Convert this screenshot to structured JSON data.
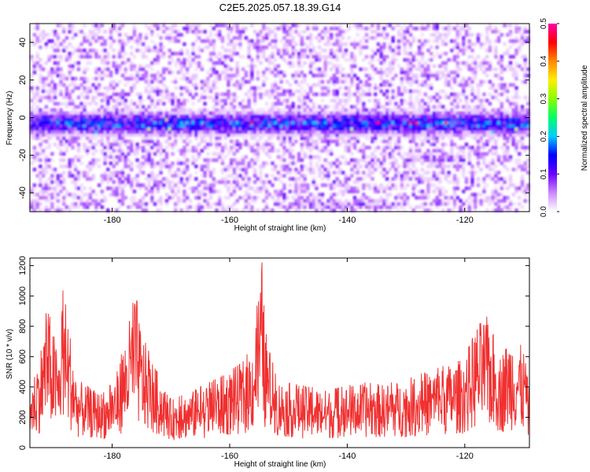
{
  "title": "C2E5.2025.057.18.39.G14",
  "chart_data": [
    {
      "type": "heatmap",
      "xlabel": "Height of straight line (km)",
      "ylabel": "Frequency (Hz)",
      "xlim": [
        -194,
        -109
      ],
      "ylim": [
        -50,
        50
      ],
      "x_ticks": [
        -180,
        -160,
        -140,
        -120
      ],
      "y_ticks": [
        -40,
        -20,
        0,
        20,
        40
      ],
      "colorbar": {
        "label": "Normalized spectral amplitude",
        "range": [
          0,
          0.5
        ],
        "ticks": [
          0.0,
          0.1,
          0.2,
          0.3,
          0.4,
          0.5
        ],
        "colors": [
          "#ffffff",
          "#cc88ff",
          "#6a00ff",
          "#0000ff",
          "#00ccff",
          "#00ff66",
          "#88ff00",
          "#ffee00",
          "#ff8800",
          "#ff0000",
          "#ff00aa"
        ]
      },
      "features": [
        {
          "description": "dominant band",
          "frequency_hz": -3,
          "x_range": [
            -194,
            -109
          ],
          "typical_amplitude": 0.15,
          "peak_amplitude": 0.45
        },
        {
          "description": "secondary band",
          "frequency_hz": -22,
          "x_range": [
            -130,
            -120
          ],
          "typical_amplitude": 0.08
        },
        {
          "description": "secondary band",
          "frequency_hz": -46,
          "x_range": [
            -150,
            -130
          ],
          "typical_amplitude": 0.08
        }
      ]
    },
    {
      "type": "line",
      "xlabel": "Height of straight line (km)",
      "ylabel": "SNR (10 * v/v)",
      "xlim": [
        -194,
        -109
      ],
      "ylim": [
        0,
        1250
      ],
      "x_ticks": [
        -180,
        -160,
        -140,
        -120
      ],
      "y_ticks": [
        0,
        200,
        400,
        600,
        800,
        1000,
        1200
      ],
      "line_color": "#f03030",
      "series": [
        {
          "x": [
            -194,
            -192,
            -191,
            -189,
            -188.5,
            -186,
            -183,
            -181,
            -179,
            -177,
            -176,
            -175,
            -173,
            -170,
            -167,
            -164,
            -161,
            -158,
            -156,
            -154.5,
            -154,
            -152,
            -149,
            -146,
            -143,
            -140,
            -137,
            -134,
            -131,
            -128,
            -125,
            -122,
            -120,
            -118,
            -116,
            -114,
            -112,
            -110,
            -109
          ],
          "y": [
            380,
            700,
            950,
            600,
            1140,
            450,
            380,
            360,
            520,
            860,
            1040,
            760,
            560,
            320,
            360,
            420,
            480,
            560,
            700,
            1250,
            800,
            450,
            420,
            400,
            380,
            410,
            430,
            420,
            440,
            480,
            520,
            560,
            600,
            820,
            870,
            620,
            760,
            650,
            380
          ]
        }
      ]
    }
  ]
}
